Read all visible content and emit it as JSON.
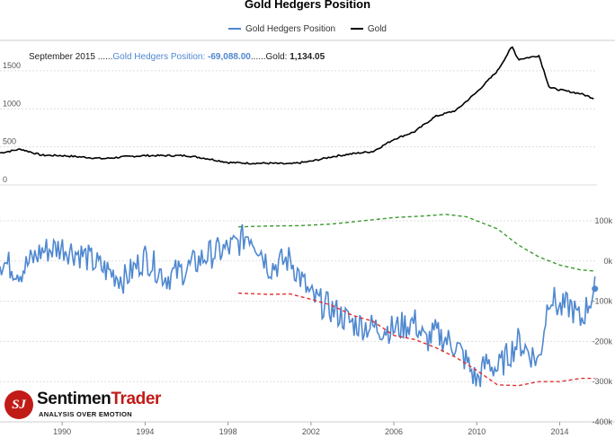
{
  "title": "Gold Hedgers Position",
  "legend": {
    "hedgers": "Gold Hedgers Position",
    "gold": "Gold"
  },
  "readout": {
    "date": "September 2015",
    "sep1": " ......",
    "hedgers_label": "Gold Hedgers Position: ",
    "hedgers_value": "-69,088.00",
    "sep2": "......",
    "gold_label": "Gold: ",
    "gold_value": "1,134.05"
  },
  "logo": {
    "mark": "SJ",
    "name_a": "Sentimen",
    "name_b": "Trader",
    "tagline": "ANALYSIS OVER EMOTION"
  },
  "colors": {
    "hedgers": "#4f88cf",
    "gold": "#000000",
    "upper_band": "#3a9a2f",
    "lower_band": "#e03030",
    "grid": "#dddddd"
  },
  "chart_data": [
    {
      "type": "line",
      "panel": "upper",
      "series": [
        {
          "name": "Gold",
          "x": [
            1987.0,
            1988.0,
            1989.0,
            1990.0,
            1991.0,
            1992.0,
            1993.0,
            1994.0,
            1995.0,
            1996.0,
            1997.0,
            1998.0,
            1999.0,
            2000.0,
            2001.0,
            2002.0,
            2003.0,
            2004.0,
            2005.0,
            2006.0,
            2007.0,
            2008.0,
            2009.0,
            2010.0,
            2011.0,
            2011.7,
            2012.0,
            2013.0,
            2013.5,
            2014.0,
            2015.0,
            2015.7
          ],
          "y": [
            420,
            470,
            390,
            385,
            365,
            345,
            370,
            385,
            385,
            385,
            345,
            295,
            285,
            285,
            275,
            310,
            370,
            410,
            440,
            600,
            700,
            900,
            980,
            1220,
            1500,
            1820,
            1650,
            1700,
            1280,
            1250,
            1200,
            1134
          ]
        }
      ],
      "ylim": [
        0,
        1900
      ],
      "yticks": [
        "0",
        "500",
        "1000",
        "1500"
      ],
      "grid": true
    },
    {
      "type": "line",
      "panel": "lower",
      "series": [
        {
          "name": "Gold Hedgers Position",
          "x": [
            1987.0,
            1988.0,
            1989.0,
            1990.0,
            1991.0,
            1992.0,
            1993.0,
            1994.0,
            1995.0,
            1996.0,
            1997.0,
            1998.0,
            1998.5,
            1999.0,
            1999.5,
            2000.0,
            2001.0,
            2002.0,
            2003.0,
            2004.0,
            2005.0,
            2006.0,
            2007.0,
            2007.5,
            2008.0,
            2009.0,
            2009.5,
            2010.0,
            2010.5,
            2011.0,
            2012.0,
            2013.0,
            2013.5,
            2014.0,
            2014.5,
            2015.0,
            2015.7
          ],
          "y": [
            0,
            -25,
            25,
            35,
            15,
            -20,
            -45,
            10,
            -40,
            -20,
            15,
            30,
            45,
            70,
            35,
            -15,
            5,
            -90,
            -120,
            -155,
            -165,
            -170,
            -150,
            -200,
            -180,
            -210,
            -250,
            -300,
            -250,
            -270,
            -200,
            -250,
            -80,
            -120,
            -110,
            -150,
            -69
          ]
        },
        {
          "name": "",
          "x": [
            1998.5,
            2000.0,
            2001.5,
            2003.0,
            2004.5,
            2006.0,
            2007.5,
            2008.5,
            2009.5,
            2011.0,
            2012.0,
            2013.0,
            2014.0,
            2015.0,
            2015.7
          ],
          "y": [
            85,
            87,
            88,
            92,
            100,
            108,
            112,
            116,
            110,
            80,
            40,
            10,
            -10,
            -22,
            -25
          ]
        },
        {
          "name": "",
          "x": [
            1998.5,
            2000.0,
            2001.0,
            2002.0,
            2003.0,
            2004.0,
            2005.0,
            2006.0,
            2007.0,
            2008.0,
            2009.0,
            2010.0,
            2011.0,
            2012.0,
            2013.0,
            2014.0,
            2015.0,
            2015.7
          ],
          "y": [
            -80,
            -83,
            -82,
            -95,
            -110,
            -135,
            -150,
            -185,
            -195,
            -215,
            -240,
            -272,
            -308,
            -310,
            -300,
            -300,
            -292,
            -292
          ]
        }
      ],
      "ylim": [
        -400,
        100
      ],
      "yticks": [
        "100k",
        "0k",
        "-100k",
        "-200k",
        "-300k",
        "-400k"
      ],
      "grid": true
    }
  ],
  "xaxis": {
    "ticks": [
      "1990",
      "1994",
      "1998",
      "2002",
      "2006",
      "2010",
      "2014"
    ],
    "xlim": [
      1987.0,
      2015.8
    ]
  }
}
